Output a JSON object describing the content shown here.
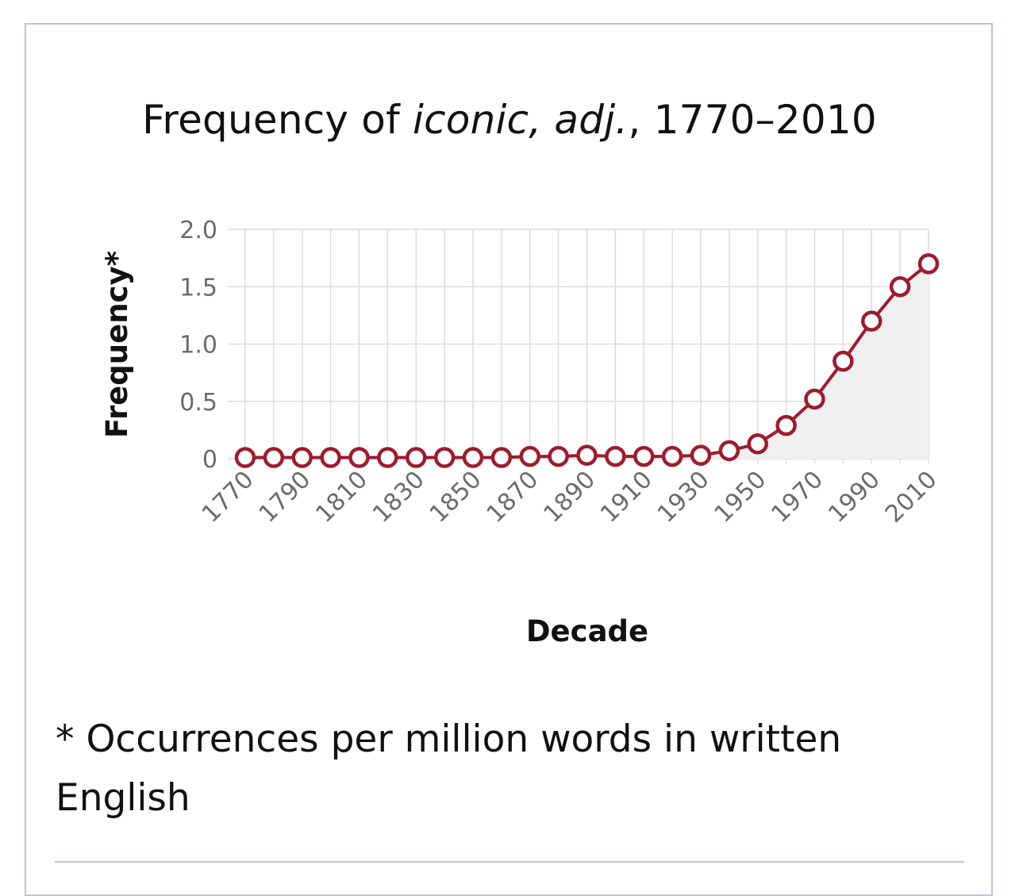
{
  "chart_data": {
    "type": "line",
    "title": {
      "prefix": "Frequency of ",
      "italic": "iconic, adj.",
      "suffix": ", 1770–2010"
    },
    "xlabel": "Decade",
    "ylabel": "Frequency*",
    "ylim": [
      0,
      2.0
    ],
    "y_ticks": [
      {
        "value": 0,
        "label": "0"
      },
      {
        "value": 0.5,
        "label": "0.5"
      },
      {
        "value": 1.0,
        "label": "1.0"
      },
      {
        "value": 1.5,
        "label": "1.5"
      },
      {
        "value": 2.0,
        "label": "2.0"
      }
    ],
    "x_tick_labels": [
      "1770",
      "1790",
      "1810",
      "1830",
      "1850",
      "1870",
      "1890",
      "1910",
      "1930",
      "1950",
      "1970",
      "1990",
      "2010"
    ],
    "grid": true,
    "area_fill": true,
    "series": [
      {
        "color": "#9e1b2e",
        "x": [
          1770,
          1780,
          1790,
          1800,
          1810,
          1820,
          1830,
          1840,
          1850,
          1860,
          1870,
          1880,
          1890,
          1900,
          1910,
          1920,
          1930,
          1940,
          1950,
          1960,
          1970,
          1980,
          1990,
          2000,
          2010
        ],
        "values": [
          0.01,
          0.01,
          0.01,
          0.01,
          0.01,
          0.01,
          0.01,
          0.01,
          0.01,
          0.01,
          0.02,
          0.02,
          0.03,
          0.02,
          0.02,
          0.02,
          0.03,
          0.07,
          0.13,
          0.29,
          0.52,
          0.85,
          1.2,
          1.5,
          1.7
        ]
      }
    ]
  },
  "footnote": "* Occurrences per million words in written English",
  "colors": {
    "line": "#9e1b2e",
    "area": "#f0f0f0",
    "grid": "#dcdcdc",
    "frame": "#b9c6d8"
  }
}
